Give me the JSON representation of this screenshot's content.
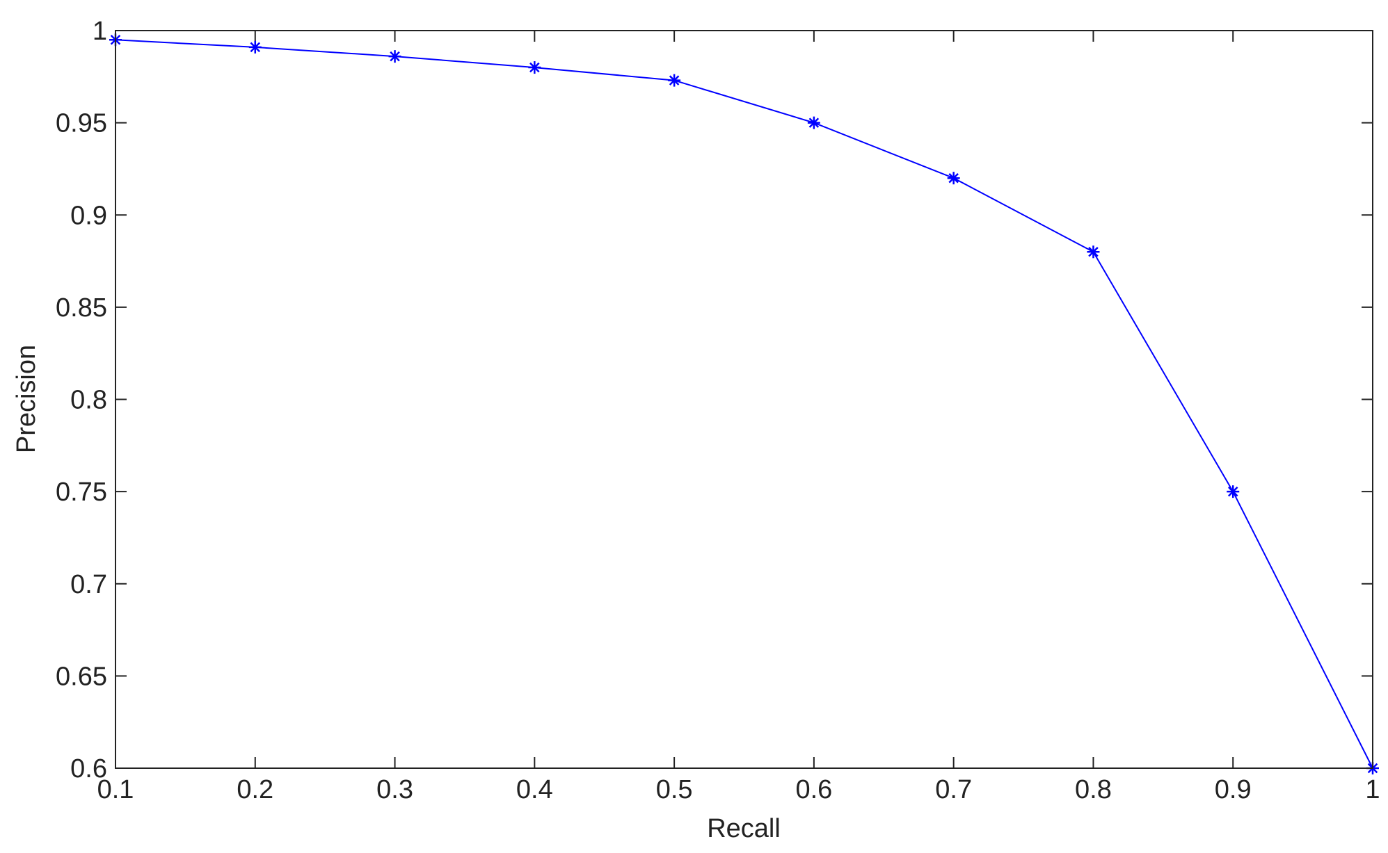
{
  "chart_data": {
    "type": "line",
    "title": "",
    "xlabel": "Recall",
    "ylabel": "Precision",
    "xlim": [
      0.1,
      1
    ],
    "ylim": [
      0.6,
      1
    ],
    "grid": false,
    "x_ticks": [
      0.1,
      0.2,
      0.3,
      0.4,
      0.5,
      0.6,
      0.7,
      0.8,
      0.9,
      1
    ],
    "x_tick_labels": [
      "0.1",
      "0.2",
      "0.3",
      "0.4",
      "0.5",
      "0.6",
      "0.7",
      "0.8",
      "0.9",
      "1"
    ],
    "y_ticks": [
      0.6,
      0.65,
      0.7,
      0.75,
      0.8,
      0.85,
      0.9,
      0.95,
      1
    ],
    "y_tick_labels": [
      "0.6",
      "0.65",
      "0.7",
      "0.75",
      "0.8",
      "0.85",
      "0.9",
      "0.95",
      "1"
    ],
    "series": [
      {
        "marker": "asterisk",
        "color": "#0000ff",
        "x": [
          0.1,
          0.2,
          0.3,
          0.4,
          0.5,
          0.6,
          0.7,
          0.8,
          0.9,
          1
        ],
        "y": [
          0.995,
          0.991,
          0.986,
          0.98,
          0.973,
          0.95,
          0.92,
          0.88,
          0.75,
          0.6
        ]
      }
    ]
  }
}
